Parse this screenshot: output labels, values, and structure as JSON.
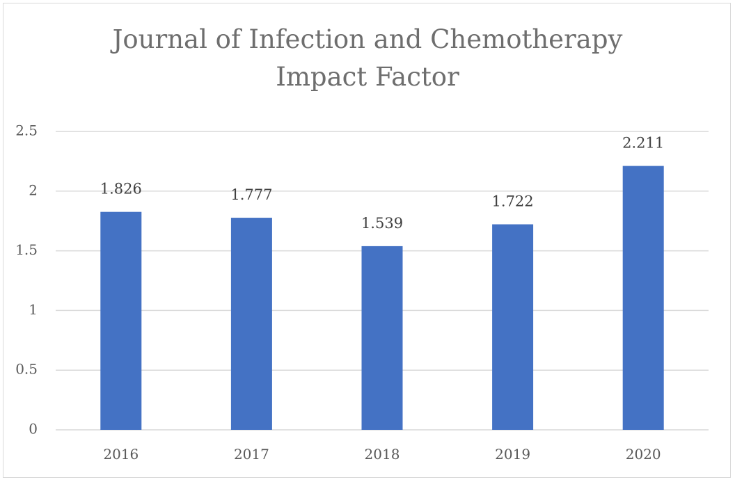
{
  "chart_data": {
    "type": "bar",
    "title_lines": [
      "Journal of Infection and Chemotherapy",
      "Impact Factor"
    ],
    "categories": [
      "2016",
      "2017",
      "2018",
      "2019",
      "2020"
    ],
    "values": [
      1.826,
      1.777,
      1.539,
      1.722,
      2.211
    ],
    "data_labels": [
      "1.826",
      "1.777",
      "1.539",
      "1.722",
      "2.211"
    ],
    "y_ticks": [
      "0",
      "0.5",
      "1",
      "1.5",
      "2",
      "2.5"
    ],
    "ylim": [
      0,
      2.5
    ],
    "grid": true,
    "legend": "none",
    "bar_color": "#4472c4",
    "grid_color": "#d9d9d9"
  }
}
